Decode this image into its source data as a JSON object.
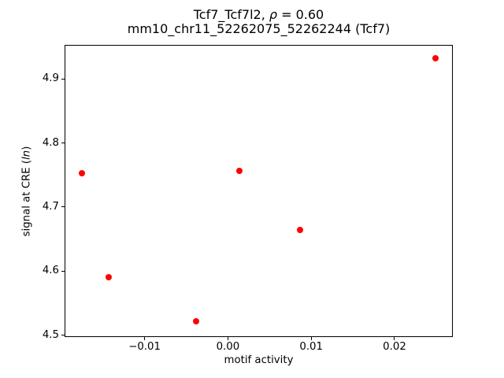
{
  "chart_data": {
    "type": "scatter",
    "title": "Tcf7_Tcf7l2, ρ = 0.60",
    "title_parts": {
      "prefix": "Tcf7_Tcf7l2, ",
      "rho_symbol": "ρ",
      "suffix": " = 0.60"
    },
    "subtitle": "mm10_chr11_52262075_52262244 (Tcf7)",
    "xlabel": "motif activity",
    "ylabel": "signal at CRE (ln)",
    "ylabel_parts": {
      "prefix": "signal at CRE (",
      "italic": "ln",
      "suffix": ")"
    },
    "points": [
      {
        "x": -0.0175,
        "y": 4.753
      },
      {
        "x": -0.0143,
        "y": 4.591
      },
      {
        "x": -0.0038,
        "y": 4.522
      },
      {
        "x": 0.0014,
        "y": 4.756
      },
      {
        "x": 0.0087,
        "y": 4.664
      },
      {
        "x": 0.0249,
        "y": 4.932
      }
    ],
    "xtick_values": [
      -0.01,
      0,
      0.01,
      0.02
    ],
    "xtick_labels": [
      "−0.01",
      "0.00",
      "0.01",
      "0.02"
    ],
    "ytick_values": [
      4.5,
      4.6,
      4.7,
      4.8,
      4.9
    ],
    "ytick_labels": [
      "4.5",
      "4.6",
      "4.7",
      "4.8",
      "4.9"
    ],
    "xlim": [
      -0.0196,
      0.0269
    ],
    "ylim": [
      4.4975,
      4.9528
    ],
    "marker_color": "#ff0000",
    "marker_diameter_px": 8,
    "grid": false,
    "legend": "none",
    "axes_color": "#000000",
    "background_color": "#ffffff"
  }
}
